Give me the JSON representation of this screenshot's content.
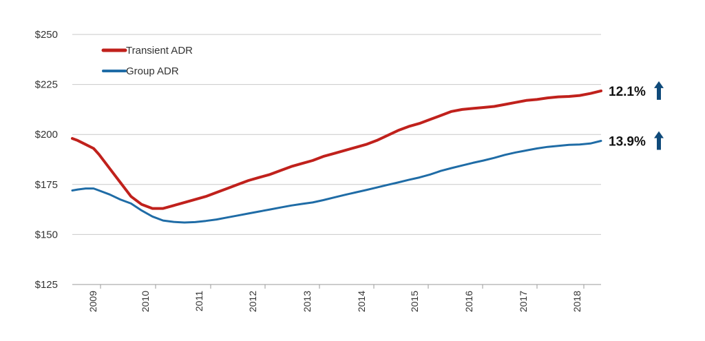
{
  "chart_data": {
    "type": "line",
    "title": "",
    "xlabel": "",
    "ylabel": "",
    "ylim": [
      125,
      250
    ],
    "yticks": [
      125,
      150,
      175,
      200,
      225,
      250
    ],
    "ytick_labels": [
      "$125",
      "$150",
      "$175",
      "$200",
      "$225",
      "$250"
    ],
    "x_tick_labels": [
      "2009",
      "2010",
      "2011",
      "2012",
      "2013",
      "2014",
      "2015",
      "2016",
      "2017",
      "2018"
    ],
    "xlim": [
      2008.5,
      2018.4
    ],
    "grid": "horizontal",
    "legend_position": "top-left",
    "x": [
      2008.5,
      2008.6,
      2008.75,
      2008.9,
      2009.0,
      2009.2,
      2009.4,
      2009.6,
      2009.8,
      2010.0,
      2010.2,
      2010.4,
      2010.6,
      2010.8,
      2011.0,
      2011.2,
      2011.4,
      2011.6,
      2011.8,
      2012.0,
      2012.2,
      2012.4,
      2012.6,
      2012.8,
      2013.0,
      2013.2,
      2013.4,
      2013.6,
      2013.8,
      2014.0,
      2014.2,
      2014.4,
      2014.6,
      2014.8,
      2015.0,
      2015.2,
      2015.4,
      2015.6,
      2015.8,
      2016.0,
      2016.2,
      2016.4,
      2016.6,
      2016.8,
      2017.0,
      2017.2,
      2017.4,
      2017.6,
      2017.8,
      2018.0,
      2018.2,
      2018.4
    ],
    "series": [
      {
        "name": "Transient ADR",
        "color": "#c0211c",
        "values": [
          198,
          197,
          195,
          193,
          190,
          183,
          176,
          169,
          165,
          163,
          163,
          164.5,
          166,
          167.5,
          169,
          171,
          173,
          175,
          177,
          178.5,
          180,
          182,
          184,
          185.5,
          187,
          189,
          190.5,
          192,
          193.5,
          195,
          197,
          199.5,
          202,
          204,
          205.5,
          207.5,
          209.5,
          211.5,
          212.5,
          213,
          213.5,
          214,
          215,
          216,
          217,
          217.5,
          218.3,
          218.8,
          219,
          219.5,
          220.5,
          221.8
        ]
      },
      {
        "name": "Group ADR",
        "color": "#1f6ca6",
        "values": [
          172,
          172.5,
          173,
          173,
          172,
          170,
          167.5,
          165.5,
          162,
          159,
          157,
          156.3,
          156,
          156.2,
          156.8,
          157.5,
          158.5,
          159.5,
          160.5,
          161.5,
          162.5,
          163.5,
          164.5,
          165.3,
          166,
          167.2,
          168.5,
          169.8,
          171,
          172.2,
          173.5,
          174.8,
          176,
          177.3,
          178.5,
          180,
          181.8,
          183.2,
          184.5,
          185.8,
          187,
          188.3,
          189.8,
          191,
          192,
          193,
          193.8,
          194.3,
          194.8,
          195,
          195.5,
          196.8
        ]
      }
    ],
    "annotations": [
      {
        "series": "Transient ADR",
        "text": "12.1%",
        "direction": "up"
      },
      {
        "series": "Group ADR",
        "text": "13.9%",
        "direction": "up"
      }
    ],
    "arrow_color": "#0f4a7a"
  }
}
